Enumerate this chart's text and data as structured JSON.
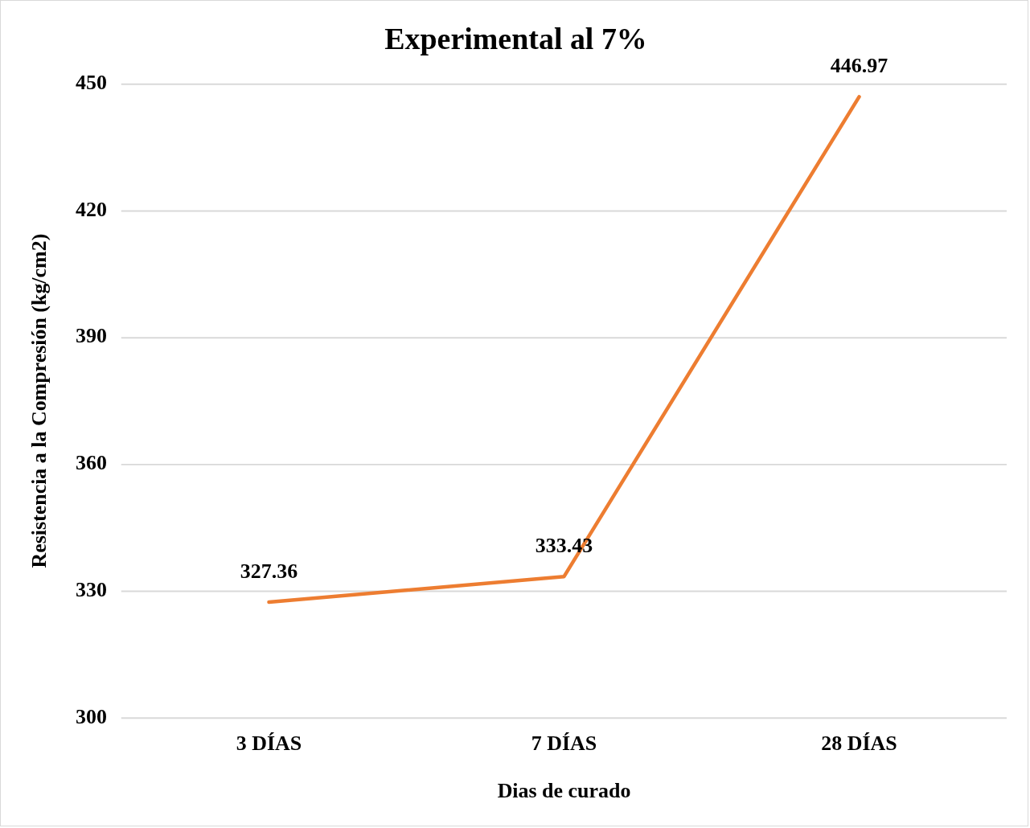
{
  "chart_data": {
    "type": "line",
    "title": "Experimental al 7%",
    "xlabel": "Dias de curado",
    "ylabel": "Resistencia a la Compresión (kg/cm2)",
    "categories": [
      "3 DÍAS",
      "7 DÍAS",
      "28 DÍAS"
    ],
    "series": [
      {
        "color": "#ed7d31",
        "values": [
          327.36,
          333.43,
          446.97
        ]
      }
    ],
    "ylim": [
      300,
      450
    ],
    "yticks": [
      300,
      330,
      360,
      390,
      420,
      450
    ],
    "grid": "y",
    "legend": false,
    "marker": "none",
    "line_style": "solid",
    "data_labels": true
  }
}
